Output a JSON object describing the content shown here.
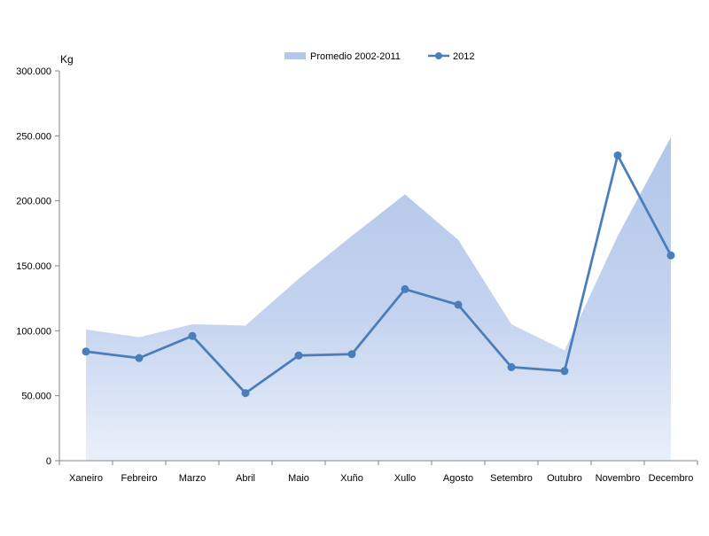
{
  "chart_data": {
    "type": "area+line",
    "unit_label": "Kg",
    "categories": [
      "Xaneiro",
      "Febreiro",
      "Marzo",
      "Abril",
      "Maio",
      "Xuño",
      "Xullo",
      "Agosto",
      "Setembro",
      "Outubro",
      "Novembro",
      "Decembro"
    ],
    "y_ticks": [
      "0",
      "50.000",
      "100.000",
      "150.000",
      "200.000",
      "250.000",
      "300.000"
    ],
    "ylim": [
      0,
      300000
    ],
    "legend_position": "top",
    "grid": false,
    "series": [
      {
        "name": "Promedio 2002-2011",
        "kind": "area",
        "color": "#b4c7ea",
        "values": [
          101000,
          95000,
          105000,
          104000,
          140000,
          173000,
          205000,
          170000,
          105000,
          85000,
          173000,
          249000
        ]
      },
      {
        "name": "2012",
        "kind": "line",
        "color": "#4a7ebb",
        "values": [
          84000,
          79000,
          96000,
          52000,
          81000,
          82000,
          132000,
          120000,
          72000,
          69000,
          235000,
          158000
        ]
      }
    ]
  }
}
